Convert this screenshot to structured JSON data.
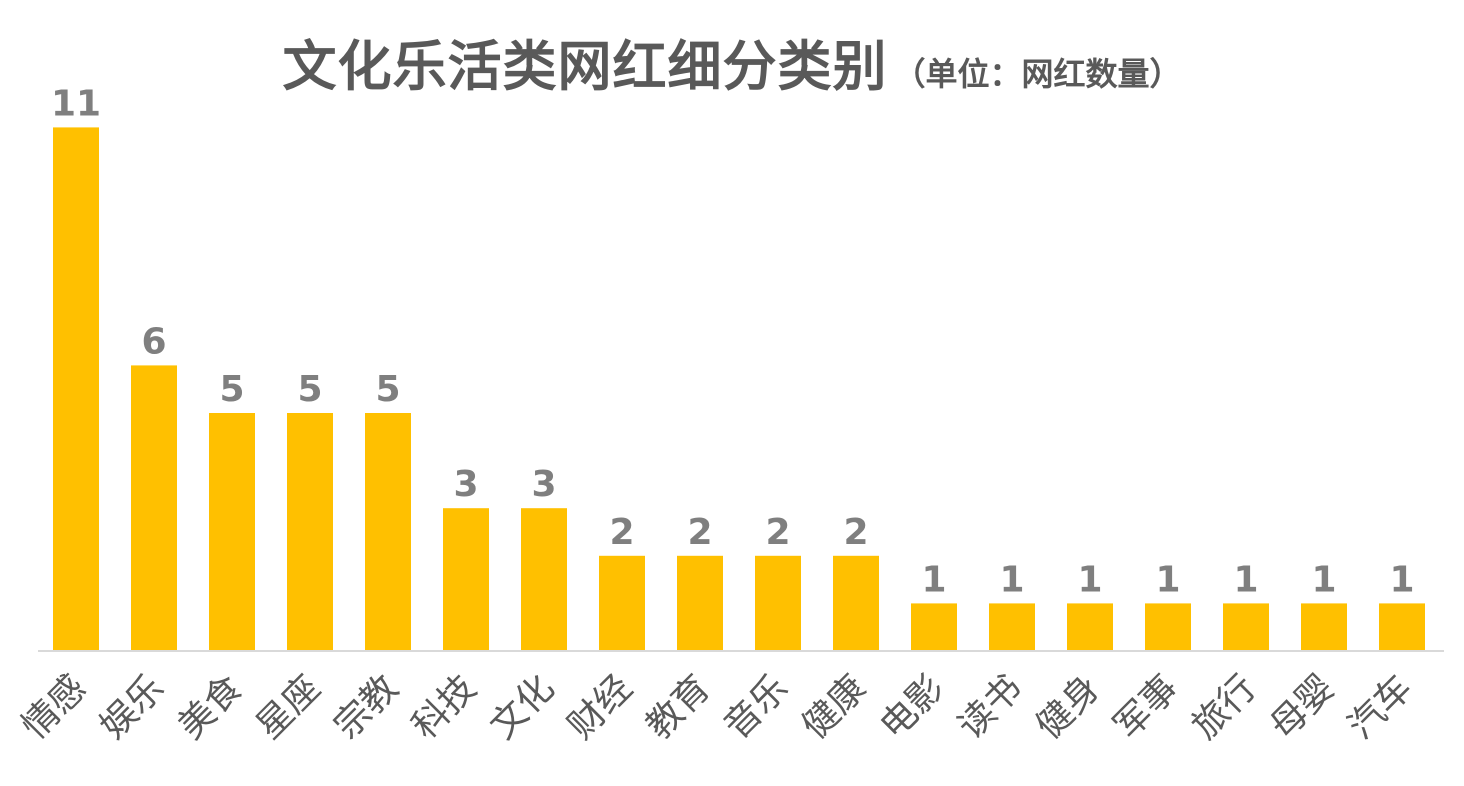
{
  "chart_data": {
    "type": "bar",
    "title": "文化乐活类网红细分类别",
    "subtitle": "（单位：网红数量）",
    "xlabel": "",
    "ylabel": "",
    "categories": [
      "情感",
      "娱乐",
      "美食",
      "星座",
      "宗教",
      "科技",
      "文化",
      "财经",
      "教育",
      "音乐",
      "健康",
      "电影",
      "读书",
      "健身",
      "军事",
      "旅行",
      "母婴",
      "汽车"
    ],
    "values": [
      11,
      6,
      5,
      5,
      5,
      3,
      3,
      2,
      2,
      2,
      2,
      1,
      1,
      1,
      1,
      1,
      1,
      1
    ],
    "ylim": [
      0,
      11
    ],
    "grid": false,
    "legend": "none",
    "colors": {
      "bar": "#FFC000",
      "data_label": "#7F7F7F",
      "axis": "#D9D9D9",
      "text": "#595959"
    }
  }
}
